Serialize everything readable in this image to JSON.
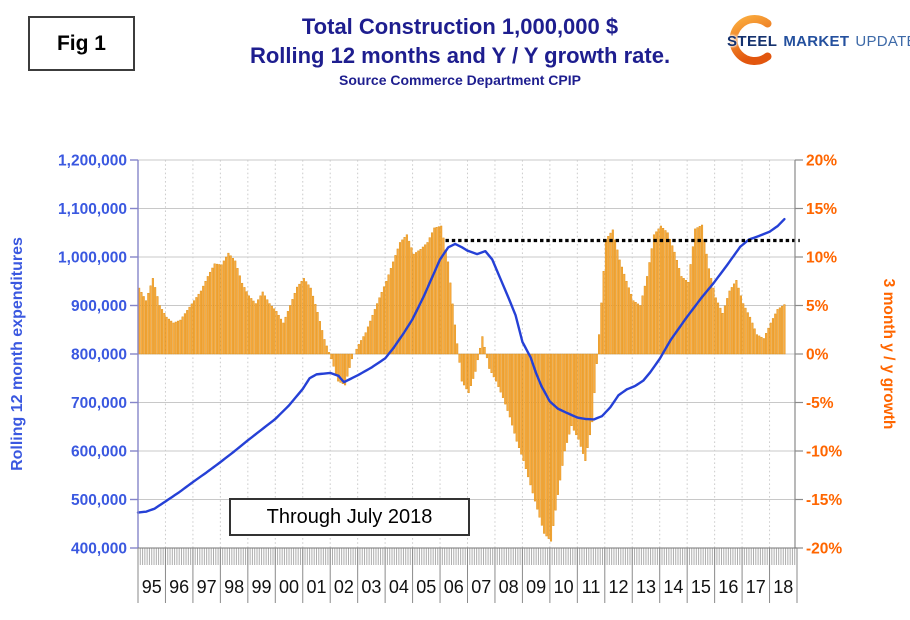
{
  "header": {
    "fig_label": "Fig 1",
    "title_line1": "Total Construction 1,000,000 $",
    "title_line2": "Rolling 12 months and Y / Y growth rate.",
    "source_line": "Source Commerce Department CPIP",
    "logo": {
      "word1": "STEEL",
      "word2": "MARKET",
      "word3": "UPDATE"
    }
  },
  "annotation": {
    "through_label": "Through July 2018"
  },
  "chart_data": {
    "type": "combo",
    "title": "Total Construction 1,000,000 $ — Rolling 12 months and Y / Y growth rate",
    "grid": true,
    "x_axis": {
      "start_year": 1995,
      "end_year": 2019,
      "year_labels": [
        "95",
        "96",
        "97",
        "98",
        "99",
        "00",
        "01",
        "02",
        "03",
        "04",
        "05",
        "06",
        "07",
        "08",
        "09",
        "10",
        "11",
        "12",
        "13",
        "14",
        "15",
        "16",
        "17",
        "18"
      ]
    },
    "left_axis": {
      "title": "Rolling 12 month expenditures",
      "color": "#3a58e0",
      "min": 400000,
      "max": 1200000,
      "tick_step": 100000,
      "tick_labels": [
        "1,200,000",
        "1,100,000",
        "1,000,000",
        "900,000",
        "800,000",
        "700,000",
        "600,000",
        "500,000",
        "400,000"
      ]
    },
    "right_axis": {
      "title": "3 month y / y growth",
      "color": "#ff6600",
      "min": -20,
      "max": 20,
      "tick_step": 5,
      "tick_labels": [
        "20%",
        "15%",
        "10%",
        "5%",
        "0%",
        "-5%",
        "-10%",
        "-15%",
        "-20%"
      ]
    },
    "bar_series": {
      "name": "3 month y / y growth",
      "axis": "right",
      "unit": "%",
      "fill": "#faab3f",
      "border": "#dc8e13",
      "x_start": 1995.0,
      "x_step": 0.25,
      "values": [
        6.8,
        5.5,
        7.8,
        5.0,
        3.8,
        3.2,
        3.5,
        4.5,
        5.5,
        6.5,
        8.0,
        9.3,
        9.2,
        10.4,
        9.6,
        7.3,
        6.0,
        5.2,
        6.4,
        5.2,
        4.4,
        3.2,
        5.0,
        6.9,
        7.8,
        6.8,
        4.3,
        1.5,
        -0.5,
        -2.8,
        -3.2,
        -0.5,
        1.0,
        2.2,
        4.0,
        5.8,
        7.5,
        9.5,
        11.5,
        12.3,
        10.3,
        10.8,
        11.5,
        13.0,
        13.2,
        9.5,
        3.0,
        -2.8,
        -4.0,
        -1.8,
        1.8,
        -1.5,
        -2.8,
        -4.5,
        -6.5,
        -9.0,
        -11.0,
        -13.5,
        -16.0,
        -18.5,
        -19.3,
        -14.5,
        -10.0,
        -7.4,
        -8.8,
        -11.0,
        -7.0,
        2.0,
        11.8,
        12.8,
        9.7,
        7.5,
        5.5,
        5.0,
        8.0,
        12.3,
        13.2,
        12.5,
        10.5,
        8.0,
        7.4,
        12.9,
        13.3,
        8.8,
        5.8,
        4.2,
        6.5,
        7.6,
        5.2,
        3.8,
        2.0,
        1.6,
        3.2,
        4.6,
        5.1
      ]
    },
    "line_series": {
      "name": "Rolling 12 month expenditures",
      "axis": "left",
      "unit": "thousand $",
      "color": "#2540d6",
      "points": [
        [
          1995.0,
          473
        ],
        [
          1995.3,
          475
        ],
        [
          1995.6,
          481
        ],
        [
          1996.0,
          496
        ],
        [
          1996.5,
          515
        ],
        [
          1997.0,
          536
        ],
        [
          1997.5,
          556
        ],
        [
          1998.0,
          577
        ],
        [
          1998.5,
          599
        ],
        [
          1999.0,
          622
        ],
        [
          1999.5,
          644
        ],
        [
          2000.0,
          666
        ],
        [
          2000.5,
          694
        ],
        [
          2001.0,
          728
        ],
        [
          2001.25,
          750
        ],
        [
          2001.5,
          758
        ],
        [
          2002.0,
          761
        ],
        [
          2002.3,
          755
        ],
        [
          2002.5,
          742
        ],
        [
          2002.75,
          749
        ],
        [
          2003.0,
          756
        ],
        [
          2003.5,
          772
        ],
        [
          2004.0,
          791
        ],
        [
          2004.3,
          812
        ],
        [
          2004.7,
          845
        ],
        [
          2005.0,
          872
        ],
        [
          2005.4,
          918
        ],
        [
          2006.0,
          995
        ],
        [
          2006.3,
          1020
        ],
        [
          2006.55,
          1027
        ],
        [
          2006.8,
          1020
        ],
        [
          2007.0,
          1013
        ],
        [
          2007.35,
          1006
        ],
        [
          2007.65,
          1012
        ],
        [
          2007.9,
          995
        ],
        [
          2008.2,
          955
        ],
        [
          2008.5,
          915
        ],
        [
          2008.75,
          880
        ],
        [
          2009.0,
          825
        ],
        [
          2009.3,
          793
        ],
        [
          2009.5,
          760
        ],
        [
          2009.7,
          733
        ],
        [
          2010.0,
          702
        ],
        [
          2010.3,
          687
        ],
        [
          2010.6,
          679
        ],
        [
          2011.0,
          669
        ],
        [
          2011.3,
          666
        ],
        [
          2011.6,
          665
        ],
        [
          2011.9,
          672
        ],
        [
          2012.2,
          690
        ],
        [
          2012.5,
          715
        ],
        [
          2012.8,
          727
        ],
        [
          2013.1,
          734
        ],
        [
          2013.4,
          745
        ],
        [
          2013.65,
          762
        ],
        [
          2014.0,
          790
        ],
        [
          2014.4,
          829
        ],
        [
          2015.0,
          877
        ],
        [
          2015.55,
          918
        ],
        [
          2015.96,
          946
        ],
        [
          2016.45,
          983
        ],
        [
          2016.93,
          1021
        ],
        [
          2017.25,
          1036
        ],
        [
          2017.6,
          1043
        ],
        [
          2018.0,
          1052
        ],
        [
          2018.3,
          1064
        ],
        [
          2018.54,
          1078
        ]
      ]
    },
    "reference_line": {
      "style": "dotted",
      "color": "#000000",
      "right_axis_value": 11.7,
      "from_year": 2006.2,
      "to_year": 2019.1
    }
  }
}
